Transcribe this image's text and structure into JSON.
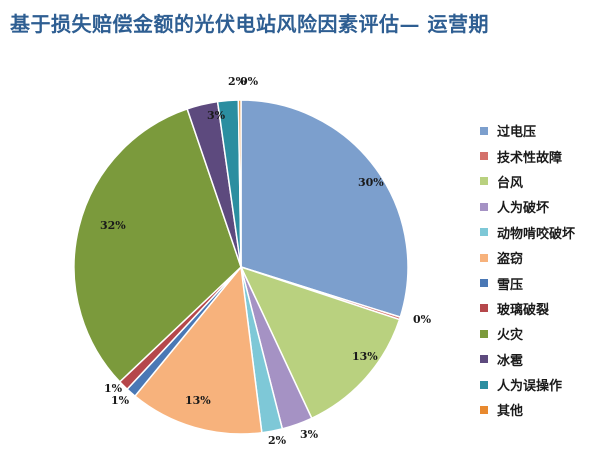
{
  "chart_data": {
    "type": "pie",
    "title": "基于损失赔偿金额的光伏电站风险因素评估— 运营期",
    "legend_position": "right",
    "slices": [
      {
        "name": "过电压",
        "value": 30,
        "label": "30%",
        "color": "#7c9fcd"
      },
      {
        "name": "技术性故障",
        "value": 0,
        "label": "0%",
        "color": "#d4716b"
      },
      {
        "name": "台风",
        "value": 13,
        "label": "13%",
        "color": "#b9d17f"
      },
      {
        "name": "人为破坏",
        "value": 3,
        "label": "3%",
        "color": "#a592c4"
      },
      {
        "name": "动物啃咬破坏",
        "value": 2,
        "label": "2%",
        "color": "#7ec8d7"
      },
      {
        "name": "盗窃",
        "value": 13,
        "label": "13%",
        "color": "#f7b27c"
      },
      {
        "name": "雪压",
        "value": 1,
        "label": "1%",
        "color": "#4a78b5"
      },
      {
        "name": "玻璃破裂",
        "value": 1,
        "label": "1%",
        "color": "#b5474b"
      },
      {
        "name": "火灾",
        "value": 32,
        "label": "32%",
        "color": "#7b9a3c"
      },
      {
        "name": "冰雹",
        "value": 3,
        "label": "3%",
        "color": "#5d4a7e"
      },
      {
        "name": "人为误操作",
        "value": 2,
        "label": "2%",
        "color": "#2b8ea0"
      },
      {
        "name": "其他",
        "value": 0,
        "label": "0%",
        "color": "#e8892f"
      }
    ]
  }
}
